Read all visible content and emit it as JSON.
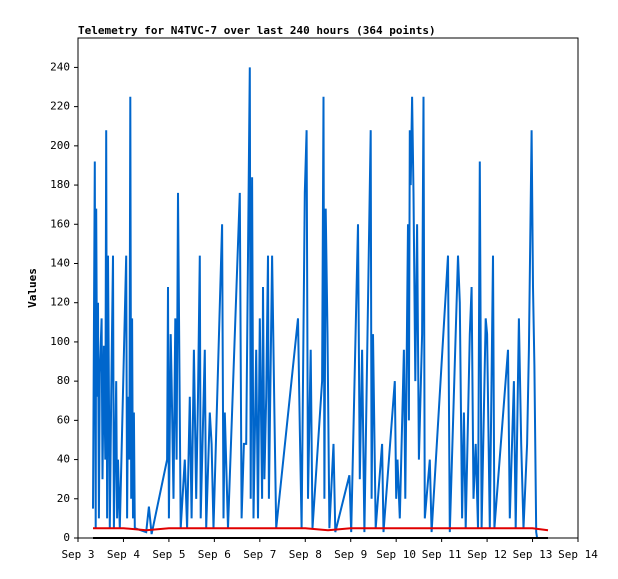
{
  "chart_data": {
    "type": "line",
    "title": "Telemetry for N4TVC-7 over last 240 hours (364 points)",
    "y_label": "Values",
    "xlim": [
      3,
      14
    ],
    "ylim": [
      0,
      255
    ],
    "xticks": [
      {
        "value": 3,
        "label": "Sep 3"
      },
      {
        "value": 4,
        "label": "Sep 4"
      },
      {
        "value": 5,
        "label": "Sep 5"
      },
      {
        "value": 6,
        "label": "Sep 6"
      },
      {
        "value": 7,
        "label": "Sep 7"
      },
      {
        "value": 8,
        "label": "Sep 8"
      },
      {
        "value": 9,
        "label": "Sep 9"
      },
      {
        "value": 10,
        "label": "Sep 10"
      },
      {
        "value": 11,
        "label": "Sep 11"
      },
      {
        "value": 12,
        "label": "Sep 12"
      },
      {
        "value": 13,
        "label": "Sep 13"
      },
      {
        "value": 14,
        "label": "Sep 14"
      }
    ],
    "yticks": [
      0,
      20,
      40,
      60,
      80,
      100,
      120,
      140,
      160,
      180,
      200,
      220,
      240
    ],
    "series": [
      {
        "color": "#0066cc",
        "x": [
          3.33,
          3.37,
          3.39,
          3.4,
          3.42,
          3.44,
          3.46,
          3.48,
          3.52,
          3.54,
          3.57,
          3.6,
          3.62,
          3.64,
          3.66,
          3.7,
          3.73,
          3.77,
          3.79,
          3.84,
          3.86,
          3.88,
          3.92,
          4.06,
          4.08,
          4.1,
          4.13,
          4.15,
          4.17,
          4.19,
          4.21,
          4.23,
          4.25,
          4.5,
          4.56,
          4.62,
          4.96,
          4.98,
          5.0,
          5.04,
          5.06,
          5.1,
          5.14,
          5.17,
          5.2,
          5.22,
          5.26,
          5.35,
          5.4,
          5.46,
          5.5,
          5.55,
          5.6,
          5.64,
          5.68,
          5.7,
          5.79,
          5.82,
          5.9,
          5.94,
          5.98,
          6.17,
          6.2,
          6.23,
          6.3,
          6.56,
          6.6,
          6.65,
          6.7,
          6.78,
          6.8,
          6.83,
          6.86,
          6.92,
          6.96,
          7.0,
          7.05,
          7.07,
          7.1,
          7.14,
          7.18,
          7.2,
          7.27,
          7.32,
          7.36,
          7.84,
          7.88,
          7.92,
          7.99,
          8.03,
          8.06,
          8.12,
          8.16,
          8.37,
          8.4,
          8.42,
          8.45,
          8.49,
          8.53,
          8.62,
          8.66,
          8.97,
          9.01,
          9.16,
          9.2,
          9.25,
          9.3,
          9.44,
          9.46,
          9.49,
          9.55,
          9.69,
          9.72,
          9.97,
          10.0,
          10.03,
          10.08,
          10.17,
          10.2,
          10.26,
          10.28,
          10.3,
          10.32,
          10.35,
          10.38,
          10.42,
          10.46,
          10.5,
          10.57,
          10.6,
          10.63,
          10.74,
          10.78,
          11.14,
          11.18,
          11.36,
          11.4,
          11.45,
          11.49,
          11.53,
          11.62,
          11.66,
          11.7,
          11.75,
          11.8,
          11.84,
          11.88,
          11.97,
          12.0,
          12.06,
          12.13,
          12.16,
          12.46,
          12.5,
          12.59,
          12.63,
          12.7,
          12.75,
          12.8,
          12.88,
          12.92,
          12.98,
          13.01,
          13.04,
          13.08,
          13.1
        ],
        "values": [
          15,
          192,
          5,
          168,
          72,
          120,
          10,
          84,
          112,
          30,
          98,
          40,
          208,
          10,
          144,
          5,
          72,
          144,
          5,
          80,
          10,
          40,
          5,
          144,
          10,
          72,
          40,
          225,
          20,
          112,
          10,
          64,
          5,
          3,
          16,
          2,
          40,
          128,
          10,
          104,
          80,
          20,
          112,
          40,
          176,
          120,
          5,
          40,
          5,
          72,
          10,
          96,
          20,
          72,
          144,
          10,
          96,
          5,
          64,
          48,
          5,
          160,
          10,
          64,
          5,
          176,
          10,
          48,
          48,
          240,
          20,
          184,
          10,
          96,
          10,
          112,
          20,
          128,
          30,
          72,
          144,
          20,
          144,
          64,
          5,
          112,
          56,
          5,
          176,
          208,
          20,
          96,
          5,
          80,
          225,
          20,
          168,
          104,
          5,
          48,
          3,
          32,
          3,
          160,
          30,
          96,
          3,
          208,
          20,
          104,
          5,
          48,
          3,
          80,
          20,
          40,
          10,
          96,
          20,
          160,
          60,
          208,
          180,
          225,
          176,
          80,
          160,
          40,
          104,
          225,
          10,
          40,
          3,
          144,
          3,
          144,
          120,
          10,
          64,
          5,
          104,
          128,
          20,
          48,
          5,
          192,
          5,
          112,
          104,
          5,
          144,
          5,
          96,
          10,
          80,
          5,
          112,
          48,
          5,
          48,
          96,
          208,
          128,
          88,
          3,
          0
        ]
      },
      {
        "color": "#e00000",
        "x": [
          3.33,
          4.0,
          4.5,
          5.0,
          6.0,
          7.0,
          8.0,
          8.5,
          9.0,
          10.0,
          11.0,
          12.0,
          13.0,
          13.34
        ],
        "values": [
          5,
          5,
          4,
          5,
          5,
          5,
          5,
          4,
          5,
          5,
          5,
          5,
          5,
          4
        ]
      },
      {
        "color": "#000000",
        "x": [
          3.33,
          13.34
        ],
        "values": [
          0,
          0
        ]
      }
    ]
  }
}
